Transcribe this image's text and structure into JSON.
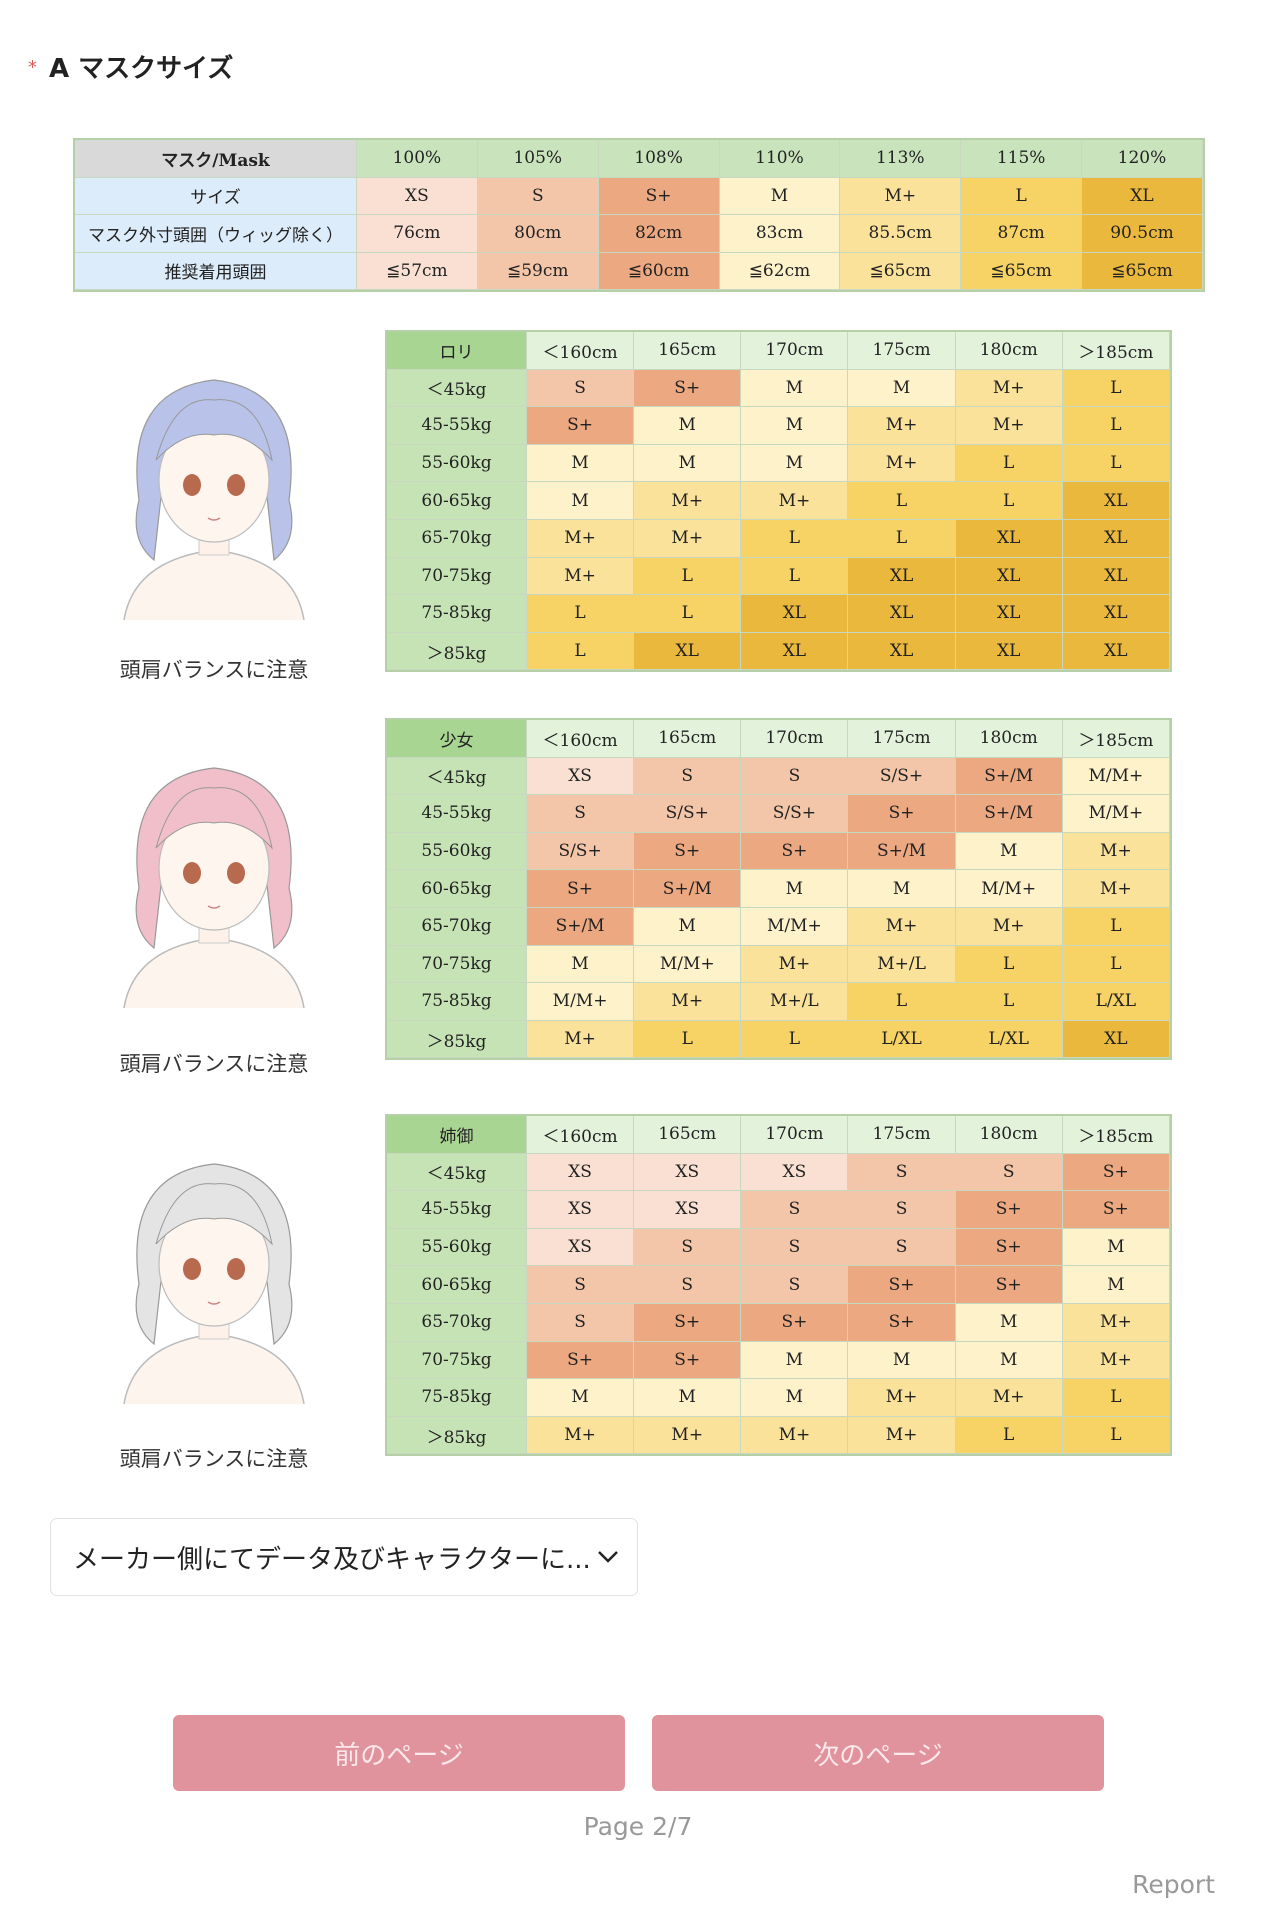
{
  "section": {
    "required_mark": "*",
    "title": "A マスクサイズ"
  },
  "size_table": {
    "header": [
      "マスク/Mask",
      "100%",
      "105%",
      "108%",
      "110%",
      "113%",
      "115%",
      "120%"
    ],
    "rows": [
      [
        "サイズ",
        "XS",
        "S",
        "S+",
        "M",
        "M+",
        "L",
        "XL"
      ],
      [
        "マスク外寸頭囲（ウィッグ除く）",
        "76cm",
        "80cm",
        "82cm",
        "83cm",
        "85.5cm",
        "87cm",
        "90.5cm"
      ],
      [
        "推奨着用頭囲",
        "≦57cm",
        "≦59cm",
        "≦60cm",
        "≦62cm",
        "≦65cm",
        "≦65cm",
        "≦65cm"
      ]
    ],
    "colors": [
      "#f9e0d2",
      "#f3c6a9",
      "#eca880",
      "#fef2cb",
      "#fbe29a",
      "#f7d264",
      "#eab83c"
    ]
  },
  "charts": [
    {
      "corner": "ロリ",
      "columns": [
        "＜160cm",
        "165cm",
        "170cm",
        "175cm",
        "180cm",
        "＞185cm"
      ],
      "rows": [
        "＜45kg",
        "45-55kg",
        "55-60kg",
        "60-65kg",
        "65-70kg",
        "70-75kg",
        "75-85kg",
        "＞85kg"
      ],
      "cells": [
        [
          "S",
          "S+",
          "M",
          "M",
          "M+",
          "L"
        ],
        [
          "S+",
          "M",
          "M",
          "M+",
          "M+",
          "L"
        ],
        [
          "M",
          "M",
          "M",
          "M+",
          "L",
          "L"
        ],
        [
          "M",
          "M+",
          "M+",
          "L",
          "L",
          "XL"
        ],
        [
          "M+",
          "M+",
          "L",
          "L",
          "XL",
          "XL"
        ],
        [
          "M+",
          "L",
          "L",
          "XL",
          "XL",
          "XL"
        ],
        [
          "L",
          "L",
          "XL",
          "XL",
          "XL",
          "XL"
        ],
        [
          "L",
          "XL",
          "XL",
          "XL",
          "XL",
          "XL"
        ]
      ],
      "caption": "頭肩バランスに注意"
    },
    {
      "corner": "少女",
      "columns": [
        "＜160cm",
        "165cm",
        "170cm",
        "175cm",
        "180cm",
        "＞185cm"
      ],
      "rows": [
        "＜45kg",
        "45-55kg",
        "55-60kg",
        "60-65kg",
        "65-70kg",
        "70-75kg",
        "75-85kg",
        "＞85kg"
      ],
      "cells": [
        [
          "XS",
          "S",
          "S",
          "S/S+",
          "S+/M",
          "M/M+"
        ],
        [
          "S",
          "S/S+",
          "S/S+",
          "S+",
          "S+/M",
          "M/M+"
        ],
        [
          "S/S+",
          "S+",
          "S+",
          "S+/M",
          "M",
          "M+"
        ],
        [
          "S+",
          "S+/M",
          "M",
          "M",
          "M/M+",
          "M+"
        ],
        [
          "S+/M",
          "M",
          "M/M+",
          "M+",
          "M+",
          "L"
        ],
        [
          "M",
          "M/M+",
          "M+",
          "M+/L",
          "L",
          "L"
        ],
        [
          "M/M+",
          "M+",
          "M+/L",
          "L",
          "L",
          "L/XL"
        ],
        [
          "M+",
          "L",
          "L",
          "L/XL",
          "L/XL",
          "XL"
        ]
      ],
      "caption": "頭肩バランスに注意"
    },
    {
      "corner": "姉御",
      "columns": [
        "＜160cm",
        "165cm",
        "170cm",
        "175cm",
        "180cm",
        "＞185cm"
      ],
      "rows": [
        "＜45kg",
        "45-55kg",
        "55-60kg",
        "60-65kg",
        "65-70kg",
        "70-75kg",
        "75-85kg",
        "＞85kg"
      ],
      "cells": [
        [
          "XS",
          "XS",
          "XS",
          "S",
          "S",
          "S+"
        ],
        [
          "XS",
          "XS",
          "S",
          "S",
          "S+",
          "S+"
        ],
        [
          "XS",
          "S",
          "S",
          "S",
          "S+",
          "M"
        ],
        [
          "S",
          "S",
          "S",
          "S+",
          "S+",
          "M"
        ],
        [
          "S",
          "S+",
          "S+",
          "S+",
          "M",
          "M+"
        ],
        [
          "S+",
          "S+",
          "M",
          "M",
          "M",
          "M+"
        ],
        [
          "M",
          "M",
          "M",
          "M+",
          "M+",
          "L"
        ],
        [
          "M+",
          "M+",
          "M+",
          "M+",
          "L",
          "L"
        ]
      ],
      "caption": "頭肩バランスに注意"
    }
  ],
  "dropdown": "メーカー側にてデータ及びキャラクターに...",
  "buttons": {
    "prev": "前のページ",
    "next": "次のページ"
  },
  "pager": "Page 2/7",
  "report": "Report"
}
